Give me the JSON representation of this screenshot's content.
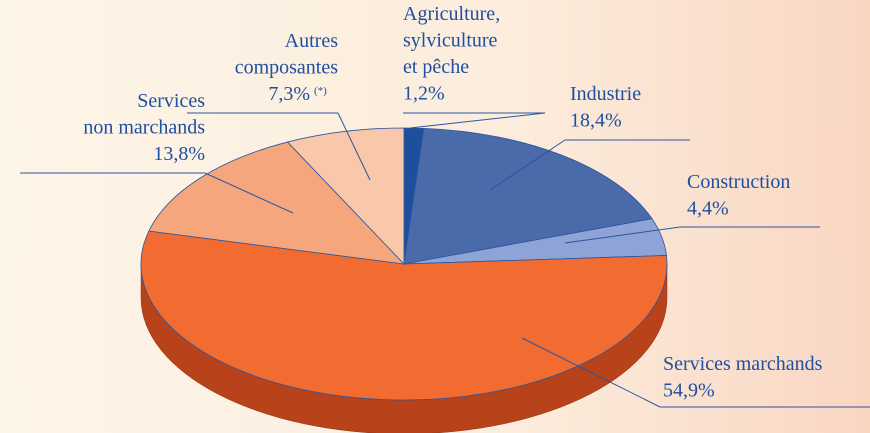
{
  "chart_data": {
    "type": "pie3d",
    "categories": [
      "Agriculture,\nsylviculture\net pêche",
      "Industrie",
      "Construction",
      "Services marchands",
      "Services\nnon marchands",
      "Autres\ncomposantes"
    ],
    "values": [
      1.2,
      18.4,
      4.4,
      54.9,
      13.8,
      7.3
    ],
    "value_labels": [
      "1,2%",
      "18,4%",
      "4,4%",
      "54,9%",
      "13,8%",
      "7,3%"
    ],
    "colors": [
      "#1d4f9c",
      "#4a6aa9",
      "#8fa4d6",
      "#f26b31",
      "#f5a67d",
      "#f9c7a9"
    ],
    "side_colors": [
      "#143a75",
      "#354f80",
      "#6a7dab",
      "#b8421a",
      "#c97a55",
      "#cf9a7d"
    ],
    "annotation": "(*)"
  }
}
